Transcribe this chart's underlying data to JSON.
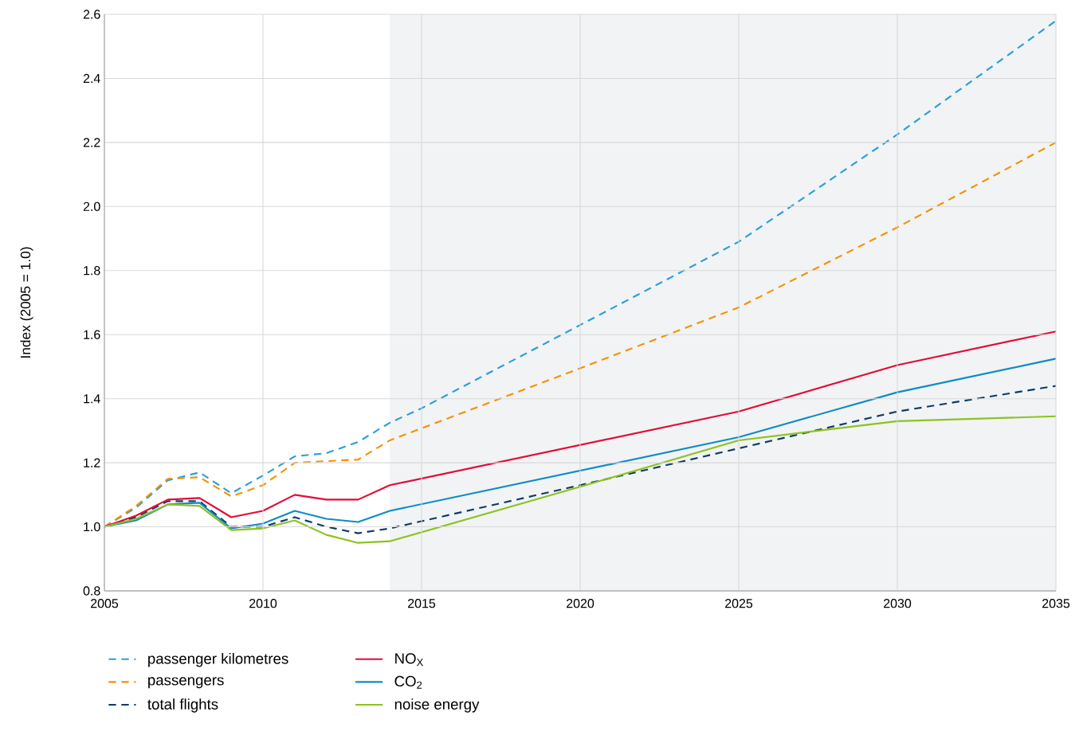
{
  "chart_data": {
    "type": "line",
    "ylabel": "Index (2005 = 1.0)",
    "xlim": [
      2005,
      2035
    ],
    "ylim": [
      0.8,
      2.6
    ],
    "xticks": [
      2005,
      2010,
      2015,
      2020,
      2025,
      2030,
      2035
    ],
    "yticks": [
      0.8,
      {
        "value": 1,
        "label": "1.0"
      },
      1.2,
      1.4,
      1.6,
      1.8,
      {
        "value": 2,
        "label": "2.0"
      },
      2.2,
      2.4,
      2.6
    ],
    "grid": true,
    "legend": "bottom",
    "bands": [
      {
        "axis": "x",
        "from": 2014,
        "to": 2035,
        "color": "#f1f3f5"
      }
    ],
    "series": [
      {
        "name": "passenger kilometres",
        "color": "#2a9fd6",
        "line_style": "dashed",
        "x": [
          2005,
          2006,
          2007,
          2008,
          2009,
          2010,
          2011,
          2012,
          2013,
          2014,
          2015,
          2020,
          2025,
          2030,
          2035
        ],
        "values": [
          1.0,
          1.06,
          1.145,
          1.17,
          1.105,
          1.16,
          1.22,
          1.23,
          1.265,
          1.325,
          1.37,
          1.63,
          1.89,
          2.225,
          2.58
        ]
      },
      {
        "name": "passengers",
        "color": "#f39200",
        "line_style": "dashed",
        "x": [
          2005,
          2006,
          2007,
          2008,
          2009,
          2010,
          2011,
          2012,
          2013,
          2014,
          2020,
          2025,
          2030,
          2035
        ],
        "values": [
          1.0,
          1.065,
          1.15,
          1.155,
          1.095,
          1.13,
          1.2,
          1.205,
          1.21,
          1.27,
          1.495,
          1.685,
          1.935,
          2.2
        ]
      },
      {
        "name": "total flights",
        "color": "#0d3b66",
        "line_style": "dashed",
        "x": [
          2005,
          2006,
          2007,
          2008,
          2009,
          2010,
          2011,
          2012,
          2013,
          2014,
          2020,
          2025,
          2030,
          2035
        ],
        "values": [
          1.0,
          1.03,
          1.08,
          1.08,
          1.0,
          1.0,
          1.03,
          1.0,
          0.98,
          0.995,
          1.13,
          1.245,
          1.36,
          1.44
        ]
      },
      {
        "name": "NO$_{X}$",
        "color": "#e30b37",
        "line_style": "solid",
        "x": [
          2005,
          2006,
          2007,
          2008,
          2009,
          2010,
          2011,
          2012,
          2013,
          2014,
          2025,
          2030,
          2035
        ],
        "values": [
          1.0,
          1.035,
          1.085,
          1.09,
          1.03,
          1.05,
          1.1,
          1.085,
          1.085,
          1.13,
          1.36,
          1.505,
          1.61
        ]
      },
      {
        "name": "CO$_{2}$",
        "color": "#0f8cc4",
        "line_style": "solid",
        "x": [
          2005,
          2006,
          2007,
          2008,
          2009,
          2010,
          2011,
          2012,
          2013,
          2014,
          2025,
          2030,
          2035
        ],
        "values": [
          1.0,
          1.02,
          1.07,
          1.075,
          0.995,
          1.01,
          1.05,
          1.025,
          1.015,
          1.05,
          1.28,
          1.42,
          1.525
        ]
      },
      {
        "name": "noise energy",
        "color": "#8dc21f",
        "line_style": "solid",
        "x": [
          2005,
          2006,
          2007,
          2008,
          2009,
          2010,
          2011,
          2012,
          2013,
          2014,
          2020,
          2025,
          2030,
          2035
        ],
        "values": [
          1.0,
          1.025,
          1.07,
          1.065,
          0.99,
          0.995,
          1.02,
          0.975,
          0.95,
          0.955,
          1.125,
          1.27,
          1.33,
          1.345
        ]
      }
    ]
  }
}
